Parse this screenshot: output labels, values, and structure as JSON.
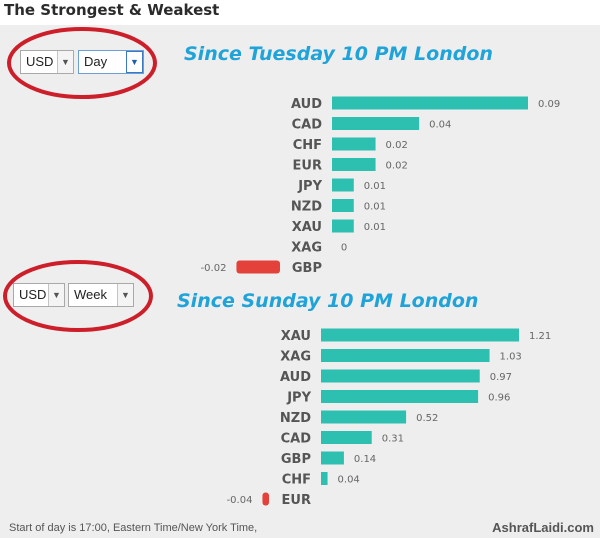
{
  "title": "The Strongest & Weakest",
  "colors": {
    "positive": "#2dbfb0",
    "negative": "#e3413a",
    "heading": "#1fa3d9",
    "annotation": "#cc1f2a"
  },
  "panel1": {
    "currency_select": "USD",
    "period_select": "Day",
    "heading": "Since Tuesday 10 PM London"
  },
  "panel2": {
    "currency_select": "USD",
    "period_select": "Week",
    "heading": "Since Sunday 10 PM London"
  },
  "footer": {
    "note": "Start of day is 17:00, Eastern Time/New York Time,",
    "brand": "AshrafLaidi.com"
  },
  "chart_data": [
    {
      "type": "bar",
      "orientation": "horizontal",
      "title": "Since Tuesday 10 PM London",
      "categories": [
        "AUD",
        "CAD",
        "CHF",
        "EUR",
        "JPY",
        "NZD",
        "XAU",
        "XAG",
        "GBP"
      ],
      "values": [
        0.09,
        0.04,
        0.02,
        0.02,
        0.01,
        0.01,
        0.01,
        0,
        -0.02
      ],
      "value_labels": [
        "0.09",
        "0.04",
        "0.02",
        "0.02",
        "0.01",
        "0.01",
        "0.01",
        "0",
        "-0.02"
      ]
    },
    {
      "type": "bar",
      "orientation": "horizontal",
      "title": "Since Sunday 10 PM London",
      "categories": [
        "XAU",
        "XAG",
        "AUD",
        "JPY",
        "NZD",
        "CAD",
        "GBP",
        "CHF",
        "EUR"
      ],
      "values": [
        1.21,
        1.03,
        0.97,
        0.96,
        0.52,
        0.31,
        0.14,
        0.04,
        -0.04
      ],
      "value_labels": [
        "1.21",
        "1.03",
        "0.97",
        "0.96",
        "0.52",
        "0.31",
        "0.14",
        "0.04",
        "-0.04"
      ]
    }
  ]
}
